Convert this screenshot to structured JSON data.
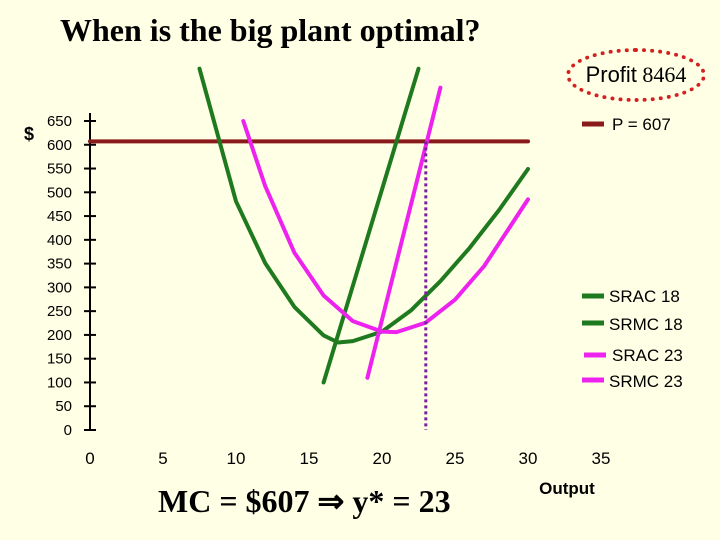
{
  "title": "When is the big plant optimal?",
  "profit": {
    "label": "Profit",
    "value": "8464"
  },
  "y_unit": "$",
  "bottom_text": {
    "left": "MC = $607",
    "arrow": "⇒",
    "right": "y* = 23"
  },
  "colors": {
    "price": "#8b1a1a",
    "plant18": "#1f7a1f",
    "plant23": "#ee22ee",
    "marker": "#7a1f9a",
    "axis": "#000000"
  },
  "chart_data": {
    "type": "line",
    "xlabel": "Output",
    "ylabel": "$",
    "xlim": [
      0,
      35
    ],
    "ylim": [
      0,
      650
    ],
    "xticks": [
      0,
      5,
      10,
      15,
      20,
      25,
      30,
      35
    ],
    "yticks": [
      0,
      50,
      100,
      150,
      200,
      250,
      300,
      350,
      400,
      450,
      500,
      550,
      600,
      650
    ],
    "series": [
      {
        "name": "P = 607",
        "color": "#8b1a1a",
        "x": [
          0,
          30
        ],
        "y": [
          607,
          607
        ]
      },
      {
        "name": "SRAC 18",
        "color": "#1f7a1f",
        "x": [
          7.5,
          10,
          12,
          14,
          16,
          17,
          18,
          20,
          22,
          24,
          26,
          28,
          30
        ],
        "y": [
          760,
          481,
          351,
          259,
          199,
          184,
          187,
          207,
          252,
          313,
          383,
          462,
          549
        ]
      },
      {
        "name": "SRMC 18",
        "color": "#1f7a1f",
        "x": [
          16,
          22.5
        ],
        "y": [
          100,
          760
        ]
      },
      {
        "name": "SRAC 23",
        "color": "#ee22ee",
        "x": [
          10.5,
          12,
          14,
          16,
          18,
          20,
          21,
          23,
          25,
          27,
          30
        ],
        "y": [
          650,
          513,
          373,
          283,
          229,
          207,
          206,
          226,
          274,
          345,
          485
        ]
      },
      {
        "name": "SRMC 23",
        "color": "#ee22ee",
        "x": [
          19,
          24
        ],
        "y": [
          110,
          720
        ]
      }
    ],
    "marker": {
      "x": 23,
      "y_from": 0,
      "y_to": 607
    },
    "legend": "right",
    "grid": false
  }
}
